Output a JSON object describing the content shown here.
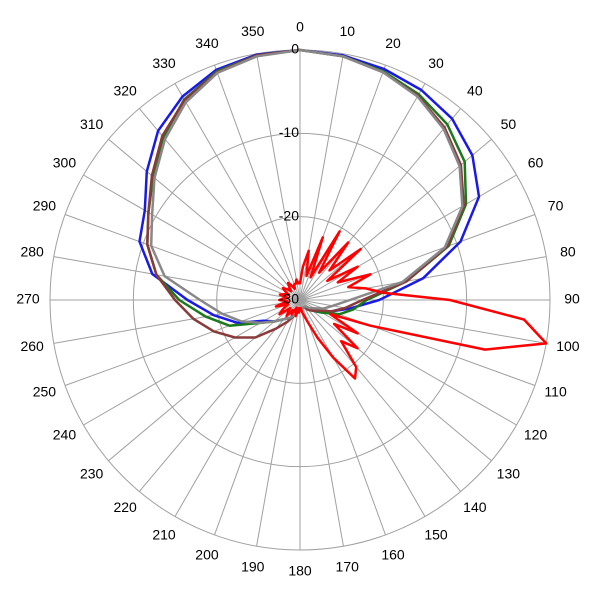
{
  "chart_data": {
    "type": "polar",
    "rlim": [
      -30,
      0
    ],
    "rticks": [
      -30,
      -20,
      -10,
      0
    ],
    "thetaticks": [
      0,
      10,
      20,
      30,
      40,
      50,
      60,
      70,
      80,
      90,
      100,
      110,
      120,
      130,
      140,
      150,
      160,
      170,
      180,
      190,
      200,
      210,
      220,
      230,
      240,
      250,
      260,
      270,
      280,
      290,
      300,
      310,
      320,
      330,
      340,
      350
    ],
    "grid": true,
    "series": [
      {
        "color": "#1a1ae6",
        "theta": [
          0,
          10,
          20,
          30,
          40,
          50,
          60,
          70,
          80,
          90,
          100,
          110,
          120,
          130,
          140,
          150,
          160,
          170,
          180,
          190,
          200,
          210,
          220,
          230,
          240,
          250,
          260,
          270,
          280,
          290,
          300,
          310,
          320,
          330,
          340,
          350
        ],
        "values": [
          0,
          -0.2,
          -0.5,
          -0.9,
          -1.6,
          -3,
          -5.2,
          -9.5,
          -15,
          -20.5,
          -24,
          -26,
          -27,
          -28,
          -28.5,
          -29,
          -29,
          -29,
          -29,
          -28.5,
          -28,
          -27.5,
          -27,
          -26,
          -25,
          -22,
          -19.5,
          -16.5,
          -12,
          -9.5,
          -8.5,
          -6,
          -3.5,
          -1.8,
          -0.6,
          -0.1
        ]
      },
      {
        "color": "#1a7a1a",
        "theta": [
          0,
          10,
          20,
          30,
          40,
          50,
          60,
          70,
          80,
          90,
          100,
          110,
          120,
          130,
          140,
          150,
          160,
          170,
          180,
          190,
          200,
          210,
          220,
          230,
          240,
          250,
          260,
          270,
          280,
          290,
          300,
          310,
          320,
          330,
          340,
          350
        ],
        "values": [
          0,
          -0.3,
          -0.8,
          -1.5,
          -2.5,
          -4.2,
          -7,
          -11,
          -17,
          -22,
          -23.5,
          -25,
          -27,
          -28,
          -28.5,
          -29,
          -29,
          -29,
          -29,
          -28.5,
          -28,
          -27.5,
          -27,
          -26,
          -24.5,
          -21,
          -18.5,
          -15.5,
          -12.5,
          -10.5,
          -9,
          -7,
          -4.5,
          -2.2,
          -0.8,
          -0.2
        ]
      },
      {
        "color": "#8b3a3a",
        "theta": [
          0,
          10,
          20,
          30,
          40,
          50,
          60,
          70,
          80,
          90,
          100,
          110,
          120,
          130,
          140,
          150,
          160,
          170,
          180,
          190,
          200,
          210,
          220,
          230,
          240,
          250,
          260,
          270,
          280,
          290,
          300,
          310,
          320,
          330,
          340,
          350
        ],
        "values": [
          0,
          -0.3,
          -0.9,
          -1.7,
          -3,
          -4.8,
          -7.3,
          -11.2,
          -17,
          -22.5,
          -24.5,
          -26,
          -27.5,
          -28,
          -28.5,
          -29,
          -29,
          -29,
          -29,
          -28.5,
          -28,
          -27,
          -25.5,
          -23,
          -21,
          -19,
          -17,
          -15,
          -12.5,
          -10.5,
          -9,
          -6.8,
          -4.3,
          -2.3,
          -0.9,
          -0.2
        ]
      },
      {
        "color": "#888888",
        "theta": [
          0,
          10,
          20,
          30,
          40,
          50,
          60,
          70,
          80,
          90,
          100,
          110,
          120,
          130,
          140,
          150,
          160,
          170,
          180,
          190,
          200,
          210,
          220,
          230,
          240,
          250,
          260,
          270,
          280,
          290,
          300,
          310,
          320,
          330,
          340,
          350
        ],
        "values": [
          0,
          -0.3,
          -0.9,
          -1.8,
          -3.2,
          -5,
          -7.5,
          -11.5,
          -17.5,
          -24,
          -26,
          -27,
          -28,
          -28.5,
          -29,
          -29,
          -29,
          -29,
          -29,
          -28.5,
          -28,
          -27.5,
          -27,
          -26,
          -24.5,
          -22.5,
          -20.5,
          -18,
          -13.5,
          -11,
          -9.5,
          -7.2,
          -4.8,
          -2.6,
          -1,
          -0.3
        ]
      },
      {
        "color": "#ff0000",
        "theta": [
          0,
          5,
          10,
          15,
          20,
          25,
          30,
          35,
          40,
          45,
          50,
          55,
          60,
          65,
          70,
          75,
          80,
          85,
          90,
          95,
          100,
          105,
          110,
          115,
          120,
          125,
          130,
          135,
          140,
          145,
          150,
          155,
          160,
          165,
          170,
          175,
          180,
          185,
          190,
          195,
          200,
          205,
          210,
          215,
          220,
          225,
          230,
          235,
          240,
          245,
          250,
          255,
          260,
          265,
          270,
          275,
          280,
          285,
          290,
          295,
          300,
          305,
          310,
          315,
          320,
          325,
          330,
          335,
          340,
          345,
          350,
          355
        ],
        "values": [
          -28,
          -26,
          -24,
          -27,
          -22,
          -27,
          -20.5,
          -26,
          -21,
          -25,
          -20.5,
          -26,
          -22,
          -25,
          -21,
          -24,
          -22,
          -20,
          -12,
          -3,
          0,
          -7,
          -21,
          -26,
          -22,
          -25,
          -21,
          -23,
          -19.5,
          -18.5,
          -22,
          -25,
          -27,
          -28,
          -28.5,
          -29,
          -29,
          -28.5,
          -29,
          -28,
          -28.5,
          -29,
          -28,
          -28.5,
          -27.5,
          -28,
          -28.5,
          -27,
          -27.5,
          -28,
          -28.5,
          -27,
          -28,
          -28.5,
          -27.5,
          -28,
          -28.5,
          -27.5,
          -28,
          -28.5,
          -28,
          -27.5,
          -28,
          -28.5,
          -28,
          -27.5,
          -28,
          -28.5,
          -28,
          -28,
          -27.5,
          -28
        ]
      }
    ]
  }
}
